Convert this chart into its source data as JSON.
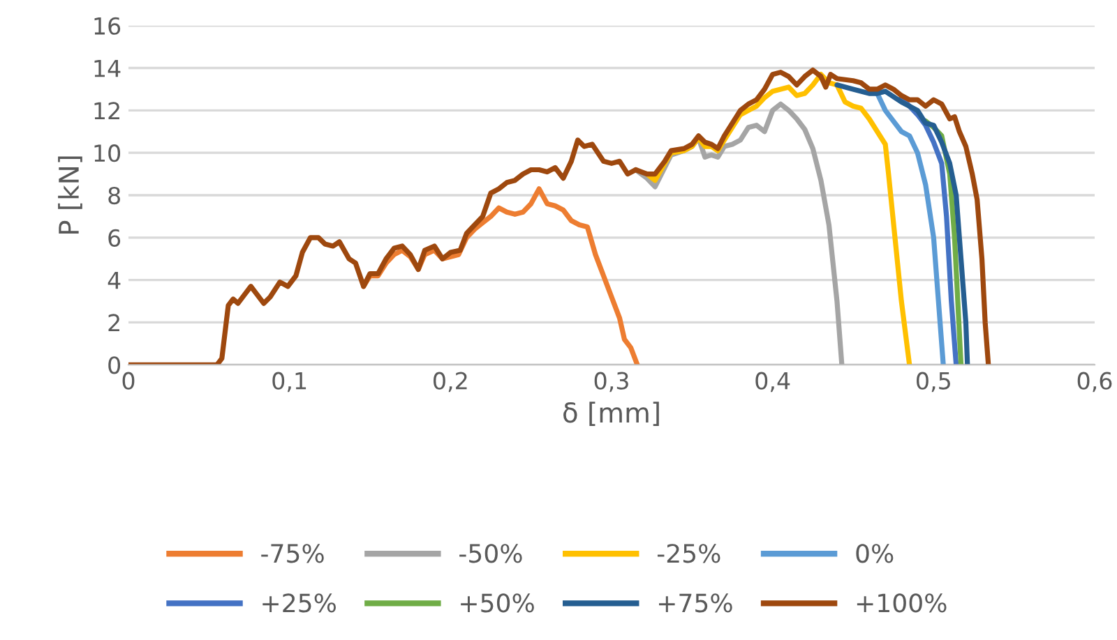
{
  "chart_data": {
    "type": "line",
    "xlabel": "δ [mm]",
    "ylabel": "P [kN]",
    "xlim": [
      0,
      0.6
    ],
    "ylim": [
      0,
      16
    ],
    "xticks": [
      0,
      {
        "value": 0.1,
        "label": "0,1"
      },
      {
        "value": 0.2,
        "label": "0,2"
      },
      {
        "value": 0.3,
        "label": "0,3"
      },
      {
        "value": 0.4,
        "label": "0,4"
      },
      {
        "value": 0.5,
        "label": "0,5"
      },
      {
        "value": 0.6,
        "label": "0,6"
      }
    ],
    "yticks": [
      0,
      2,
      4,
      6,
      8,
      10,
      12,
      14,
      16
    ],
    "grid": "y",
    "legend": "bottom",
    "marker": "none",
    "line_style": "solid",
    "series": [
      {
        "name": "-75%",
        "color": "#ed7d31",
        "x": [
          0.146,
          0.15,
          0.155,
          0.16,
          0.165,
          0.17,
          0.175,
          0.18,
          0.184,
          0.19,
          0.195,
          0.2,
          0.205,
          0.21,
          0.215,
          0.22,
          0.225,
          0.23,
          0.235,
          0.24,
          0.245,
          0.25,
          0.255,
          0.26,
          0.265,
          0.27,
          0.275,
          0.28,
          0.285,
          0.29,
          0.295,
          0.3,
          0.305,
          0.308,
          0.312,
          0.316
        ],
        "values": [
          3.7,
          4.2,
          4.2,
          4.8,
          5.2,
          5.4,
          5.1,
          4.5,
          5.2,
          5.4,
          5.0,
          5.1,
          5.2,
          6.0,
          6.4,
          6.7,
          7.0,
          7.4,
          7.2,
          7.1,
          7.2,
          7.6,
          8.3,
          7.6,
          7.5,
          7.3,
          6.8,
          6.6,
          6.5,
          5.2,
          4.2,
          3.2,
          2.2,
          1.2,
          0.8,
          0
        ]
      },
      {
        "name": "-50%",
        "color": "#a5a5a5",
        "x": [
          0.315,
          0.322,
          0.327,
          0.333,
          0.337,
          0.345,
          0.35,
          0.354,
          0.358,
          0.362,
          0.366,
          0.37,
          0.375,
          0.38,
          0.385,
          0.39,
          0.395,
          0.4,
          0.405,
          0.41,
          0.415,
          0.42,
          0.425,
          0.43,
          0.435,
          0.44,
          0.443
        ],
        "values": [
          9.2,
          8.8,
          8.4,
          9.3,
          9.9,
          10.1,
          10.3,
          10.7,
          9.8,
          9.9,
          9.8,
          10.3,
          10.4,
          10.6,
          11.2,
          11.3,
          11.0,
          12.0,
          12.3,
          12.0,
          11.6,
          11.1,
          10.2,
          8.7,
          6.6,
          3.0,
          0
        ]
      },
      {
        "name": "-25%",
        "color": "#ffc000",
        "x": [
          0.322,
          0.327,
          0.333,
          0.337,
          0.345,
          0.35,
          0.354,
          0.358,
          0.362,
          0.366,
          0.37,
          0.375,
          0.38,
          0.385,
          0.39,
          0.395,
          0.4,
          0.405,
          0.41,
          0.415,
          0.42,
          0.425,
          0.43,
          0.435,
          0.44,
          0.445,
          0.45,
          0.455,
          0.46,
          0.465,
          0.47,
          0.472,
          0.476,
          0.48,
          0.485
        ],
        "values": [
          9.0,
          8.7,
          9.5,
          10.0,
          10.1,
          10.3,
          10.7,
          10.3,
          10.3,
          10.1,
          10.6,
          11.2,
          11.8,
          12.0,
          12.2,
          12.6,
          12.9,
          13.0,
          13.1,
          12.7,
          12.8,
          13.2,
          13.7,
          13.3,
          13.2,
          12.4,
          12.2,
          12.1,
          11.6,
          11.0,
          10.4,
          9.0,
          6.0,
          3.0,
          0
        ]
      },
      {
        "name": "0%",
        "color": "#5b9bd5",
        "x": [
          0.465,
          0.47,
          0.475,
          0.48,
          0.485,
          0.49,
          0.495,
          0.5,
          0.503,
          0.506
        ],
        "values": [
          12.8,
          12.0,
          11.5,
          11.0,
          10.8,
          10.0,
          8.5,
          6.0,
          3.0,
          0
        ]
      },
      {
        "name": "+25%",
        "color": "#4472c4",
        "x": [
          0.48,
          0.49,
          0.495,
          0.5,
          0.505,
          0.508,
          0.511,
          0.514
        ],
        "values": [
          12.6,
          11.8,
          11.3,
          10.5,
          9.5,
          7.0,
          3.0,
          0
        ]
      },
      {
        "name": "+50%",
        "color": "#70ad47",
        "x": [
          0.495,
          0.5,
          0.505,
          0.51,
          0.513,
          0.515,
          0.517
        ],
        "values": [
          11.5,
          11.2,
          10.8,
          9.0,
          6.0,
          3.0,
          0
        ]
      },
      {
        "name": "+75%",
        "color": "#255e91",
        "x": [
          0.44,
          0.45,
          0.46,
          0.465,
          0.47,
          0.48,
          0.49,
          0.495,
          0.5,
          0.505,
          0.51,
          0.514,
          0.517,
          0.52,
          0.521
        ],
        "values": [
          13.2,
          13.0,
          12.8,
          12.8,
          12.9,
          12.4,
          12.0,
          11.4,
          11.3,
          10.5,
          9.5,
          8.0,
          5.0,
          2.0,
          0
        ]
      },
      {
        "name": "+100%",
        "color": "#9e480e",
        "x": [
          0,
          0.055,
          0.058,
          0.062,
          0.065,
          0.068,
          0.072,
          0.076,
          0.08,
          0.084,
          0.088,
          0.094,
          0.099,
          0.104,
          0.108,
          0.113,
          0.118,
          0.122,
          0.127,
          0.131,
          0.137,
          0.141,
          0.146,
          0.15,
          0.155,
          0.16,
          0.165,
          0.17,
          0.175,
          0.18,
          0.184,
          0.19,
          0.195,
          0.2,
          0.206,
          0.21,
          0.215,
          0.22,
          0.225,
          0.23,
          0.235,
          0.24,
          0.245,
          0.25,
          0.255,
          0.26,
          0.265,
          0.27,
          0.275,
          0.279,
          0.283,
          0.288,
          0.295,
          0.3,
          0.305,
          0.31,
          0.315,
          0.322,
          0.327,
          0.333,
          0.337,
          0.345,
          0.35,
          0.354,
          0.358,
          0.362,
          0.366,
          0.37,
          0.375,
          0.38,
          0.385,
          0.39,
          0.395,
          0.4,
          0.405,
          0.41,
          0.415,
          0.42,
          0.425,
          0.43,
          0.433,
          0.436,
          0.44,
          0.45,
          0.455,
          0.46,
          0.465,
          0.47,
          0.475,
          0.48,
          0.485,
          0.49,
          0.495,
          0.5,
          0.505,
          0.51,
          0.513,
          0.516,
          0.52,
          0.524,
          0.527,
          0.53,
          0.532,
          0.534
        ],
        "values": [
          0,
          0,
          0.3,
          2.8,
          3.1,
          2.9,
          3.3,
          3.7,
          3.3,
          2.9,
          3.2,
          3.9,
          3.7,
          4.2,
          5.3,
          6.0,
          6.0,
          5.7,
          5.6,
          5.8,
          5.0,
          4.8,
          3.7,
          4.3,
          4.3,
          5.0,
          5.5,
          5.6,
          5.2,
          4.5,
          5.4,
          5.6,
          5.0,
          5.3,
          5.4,
          6.2,
          6.6,
          7.0,
          8.1,
          8.3,
          8.6,
          8.7,
          9.0,
          9.2,
          9.2,
          9.1,
          9.3,
          8.8,
          9.6,
          10.6,
          10.3,
          10.4,
          9.6,
          9.5,
          9.6,
          9.0,
          9.2,
          9.0,
          9.0,
          9.6,
          10.1,
          10.2,
          10.4,
          10.8,
          10.5,
          10.4,
          10.2,
          10.8,
          11.4,
          12.0,
          12.3,
          12.5,
          13.0,
          13.7,
          13.8,
          13.6,
          13.2,
          13.6,
          13.9,
          13.6,
          13.1,
          13.7,
          13.5,
          13.4,
          13.3,
          13.0,
          13.0,
          13.2,
          13.0,
          12.7,
          12.5,
          12.5,
          12.2,
          12.5,
          12.3,
          11.6,
          11.7,
          11.0,
          10.3,
          9.0,
          7.8,
          5.0,
          2.0,
          0
        ]
      }
    ]
  }
}
